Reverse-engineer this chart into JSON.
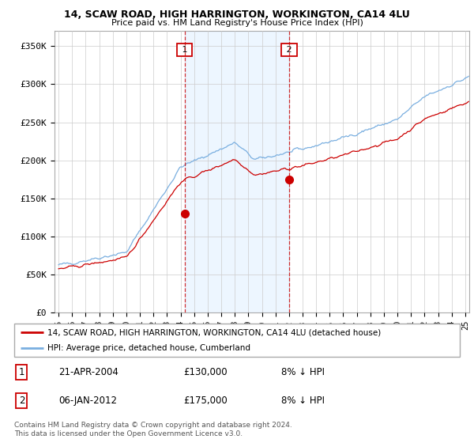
{
  "title1": "14, SCAW ROAD, HIGH HARRINGTON, WORKINGTON, CA14 4LU",
  "title2": "Price paid vs. HM Land Registry's House Price Index (HPI)",
  "ylabel_ticks": [
    "£0",
    "£50K",
    "£100K",
    "£150K",
    "£200K",
    "£250K",
    "£300K",
    "£350K"
  ],
  "ytick_vals": [
    0,
    50000,
    100000,
    150000,
    200000,
    250000,
    300000,
    350000
  ],
  "ylim": [
    0,
    370000
  ],
  "xlim_start": 1994.7,
  "xlim_end": 2025.3,
  "sale1_date": 2004.3,
  "sale1_price": 130000,
  "sale2_date": 2012.02,
  "sale2_price": 175000,
  "legend_line1": "14, SCAW ROAD, HIGH HARRINGTON, WORKINGTON, CA14 4LU (detached house)",
  "legend_line2": "HPI: Average price, detached house, Cumberland",
  "table_row1": [
    "1",
    "21-APR-2004",
    "£130,000",
    "8% ↓ HPI"
  ],
  "table_row2": [
    "2",
    "06-JAN-2012",
    "£175,000",
    "8% ↓ HPI"
  ],
  "footer": "Contains HM Land Registry data © Crown copyright and database right 2024.\nThis data is licensed under the Open Government Licence v3.0.",
  "color_red": "#cc0000",
  "color_blue": "#7aafe0",
  "color_blue_fill": "#ddeeff",
  "color_grid": "#cccccc",
  "background_color": "#ffffff",
  "plot_bg": "#ffffff"
}
